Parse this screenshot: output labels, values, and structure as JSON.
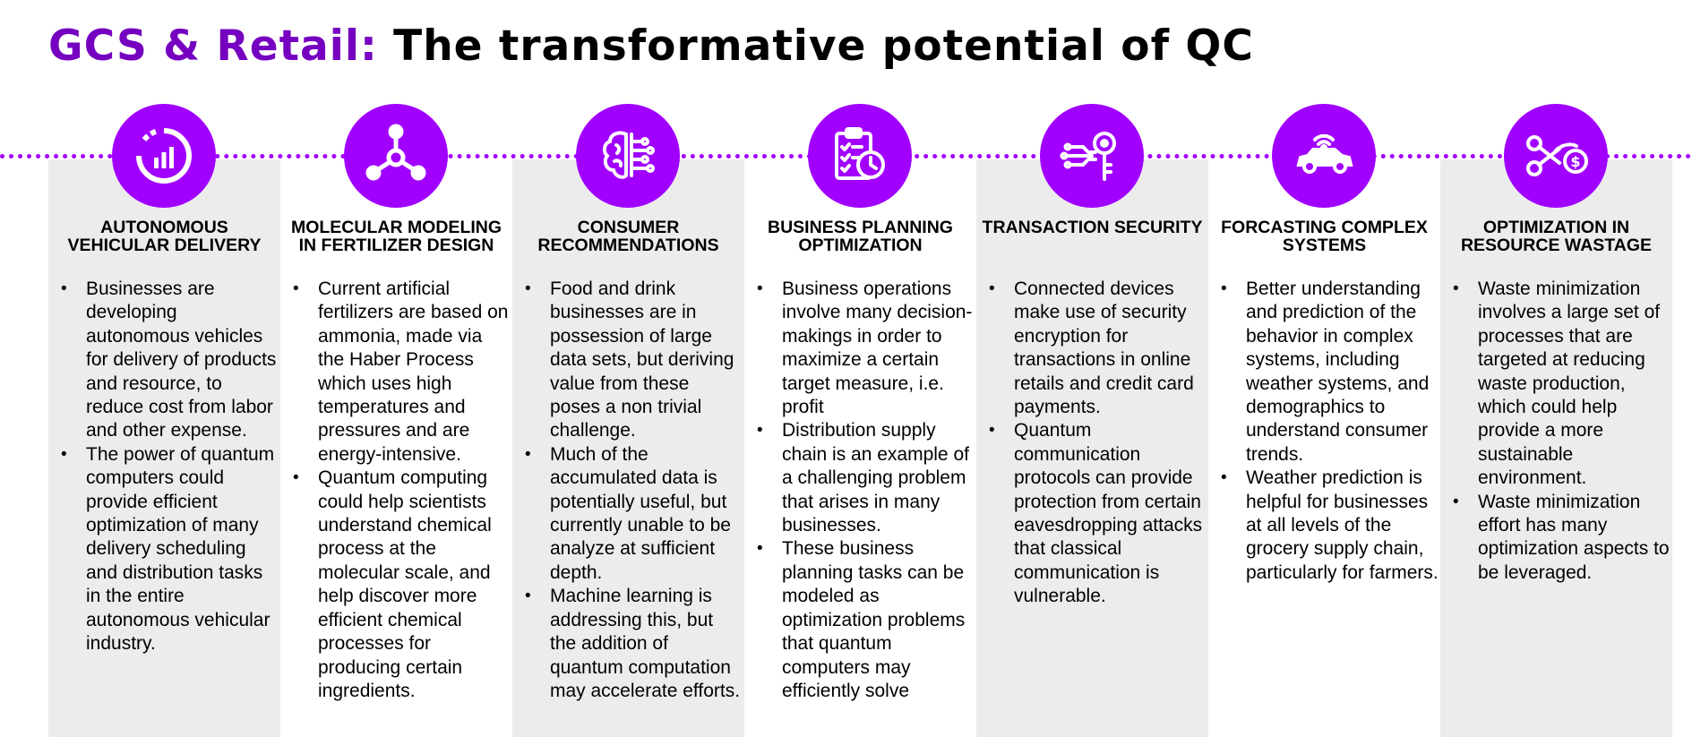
{
  "title": {
    "highlight": "GCS & Retail:",
    "main": "The transformative potential of QC"
  },
  "colors": {
    "accent": "#a100ff",
    "title_accent": "#7500c0",
    "panel_shade": "#ececec"
  },
  "columns": [
    {
      "icon": "chart-gauge-icon",
      "title": "Autonomous vehicular delivery",
      "bullets": [
        "Businesses are developing autonomous vehicles for delivery of products and resource, to reduce cost from labor and other expense.",
        "The power of quantum computers could provide efficient optimization of many delivery scheduling and distribution tasks in the entire autonomous vehicular industry."
      ]
    },
    {
      "icon": "molecule-icon",
      "title": "Molecular modeling in fertilizer design",
      "bullets": [
        "Current artificial fertilizers are based on ammonia, made via the Haber Process which uses high temperatures and pressures and are energy-intensive.",
        "Quantum computing could help scientists understand chemical process at the molecular scale, and help discover more efficient chemical processes for producing certain ingredients."
      ]
    },
    {
      "icon": "brain-circuit-icon",
      "title": "Consumer recommendations",
      "bullets": [
        "Food and drink businesses are in possession of large data sets, but deriving value from these poses a non trivial challenge.",
        "Much of the accumulated data is potentially useful, but currently unable to be analyze at sufficient depth.",
        "Machine learning is addressing this, but the addition of quantum computation may accelerate efforts."
      ]
    },
    {
      "icon": "clipboard-clock-icon",
      "title": "Business planning optimization",
      "bullets": [
        "Business operations involve many decision-makings in order to maximize a certain target measure, i.e. profit",
        "Distribution supply chain is an example of a challenging problem that arises in many businesses.",
        "These business planning tasks can be modeled as optimization problems that quantum computers may efficiently solve"
      ]
    },
    {
      "icon": "circuit-key-icon",
      "title": "Transaction security",
      "bullets": [
        "Connected devices make use of security encryption for transactions in online retails and credit card payments.",
        "Quantum communication protocols can provide protection from certain eavesdropping attacks that classical communication is vulnerable."
      ]
    },
    {
      "icon": "connected-car-icon",
      "title": "Forcasting complex systems",
      "bullets": [
        "Better understanding and prediction of the behavior in complex systems, including weather systems, and demographics to understand consumer trends.",
        "Weather prediction is helpful for businesses at all levels of the grocery supply chain, particularly for farmers."
      ]
    },
    {
      "icon": "scissors-money-icon",
      "title": "Optimization in resource wastage",
      "bullets": [
        "Waste minimization involves a large set of processes that are targeted at reducing waste production, which could help provide a more sustainable environment.",
        "Waste minimization effort has many optimization aspects to be leveraged."
      ]
    }
  ]
}
